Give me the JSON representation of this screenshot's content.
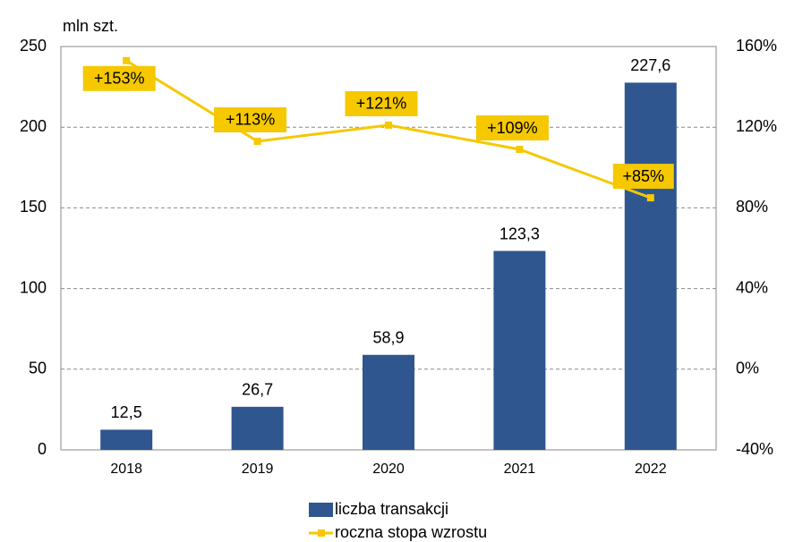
{
  "chart_data": {
    "type": "bar",
    "y_label": "mln szt.",
    "categories": [
      "2018",
      "2019",
      "2020",
      "2021",
      "2022"
    ],
    "series": [
      {
        "name": "liczba transakcji",
        "type": "bar",
        "color": "#2f568f",
        "values": [
          12.5,
          26.7,
          58.9,
          123.3,
          227.6
        ],
        "value_labels": [
          "12,5",
          "26,7",
          "58,9",
          "123,3",
          "227,6"
        ]
      },
      {
        "name": "roczna stopa wzrostu",
        "type": "line",
        "axis": "y2",
        "color": "#f5c800",
        "values": [
          153,
          113,
          121,
          109,
          85
        ],
        "value_labels": [
          "+153%",
          "+113%",
          "+121%",
          "+109%",
          "+85%"
        ]
      }
    ],
    "ylim": [
      0,
      250
    ],
    "yticks": [
      0,
      50,
      100,
      150,
      200,
      250
    ],
    "y2lim": [
      -40,
      160
    ],
    "y2ticks": [
      {
        "value": -40,
        "label": "-40%"
      },
      {
        "value": 0,
        "label": "0%"
      },
      {
        "value": 40,
        "label": "40%"
      },
      {
        "value": 80,
        "label": "80%"
      },
      {
        "value": 120,
        "label": "120%"
      },
      {
        "value": 160,
        "label": "160%"
      }
    ],
    "grid": true,
    "legend": "bottom"
  }
}
